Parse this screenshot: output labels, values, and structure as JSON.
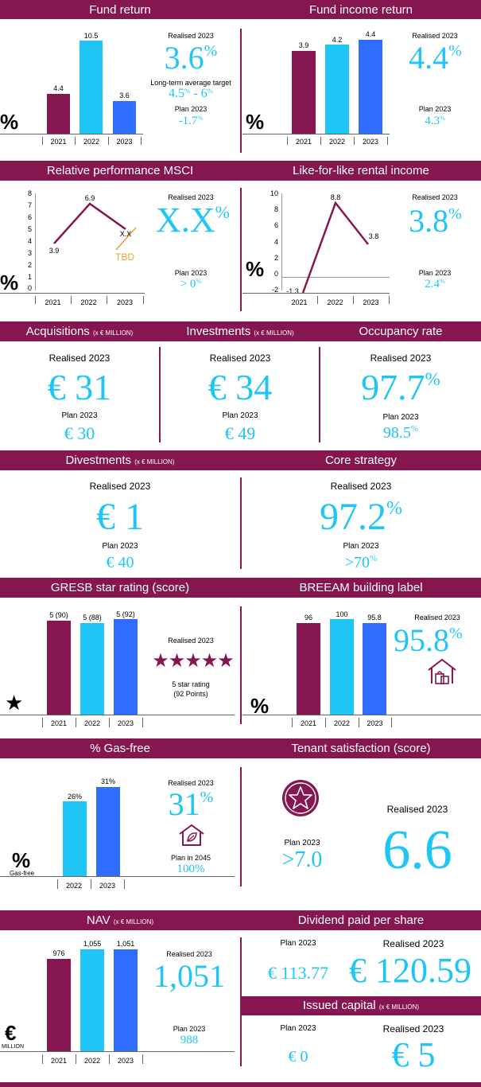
{
  "colors": {
    "band": "#86164f",
    "y2021": "#86164f",
    "y2022": "#1fc6f5",
    "y2023": "#2f6dff",
    "accent": "#1fc6f5",
    "tbd": "#f0a030"
  },
  "common": {
    "realised": "Realised 2023",
    "plan": "Plan 2023",
    "pct": "%",
    "y2021": "2021",
    "y2022": "2022",
    "y2023": "2023"
  },
  "fund_return": {
    "title": "Fund return",
    "bars": [
      "4.4",
      "10.5",
      "3.6"
    ],
    "realised_value": "3.6",
    "target_label": "Long-term average target",
    "target_value": "4.5",
    "target_value2": "6",
    "target_sep": " - ",
    "plan_value": "-1.7"
  },
  "fund_income_return": {
    "title": "Fund income return",
    "bars": [
      "3.9",
      "4.2",
      "4.4"
    ],
    "realised_value": "4.4",
    "plan_value": "4.3"
  },
  "relative_performance": {
    "title": "Relative performance MSCI",
    "yticks": [
      "8",
      "7",
      "6",
      "5",
      "4",
      "3",
      "2",
      "1",
      "0"
    ],
    "points": [
      "3.9",
      "6.9",
      "X.X"
    ],
    "tbd": "TBD",
    "realised_value": "X.X",
    "plan_value": "> 0"
  },
  "lfl_rental": {
    "title": "Like-for-like rental income",
    "yticks": [
      "10",
      "8",
      "6",
      "4",
      "2",
      "0",
      "-2"
    ],
    "points": [
      "-1.3",
      "8.8",
      "3.8"
    ],
    "realised_value": "3.8",
    "plan_value": "2.4"
  },
  "acquisitions": {
    "title": "Acquisitions",
    "unit": "(x € MILLION)",
    "realised_value": "€ 31",
    "plan_value": "€ 30"
  },
  "investments": {
    "title": "Investments",
    "unit": "(x € MILLION)",
    "realised_value": "€ 34",
    "plan_value": "€ 49"
  },
  "occupancy": {
    "title": "Occupancy rate",
    "realised_value": "97.7",
    "plan_value": "98.5"
  },
  "divestments": {
    "title": "Divestments",
    "unit": "(x € MILLION)",
    "realised_value": "€ 1",
    "plan_value": "€ 40"
  },
  "core_strategy": {
    "title": "Core strategy",
    "realised_value": "97.2",
    "plan_value": ">70"
  },
  "gresb": {
    "title": "GRESB star rating (score)",
    "bars": [
      "5 (90)",
      "5 (88)",
      "5 (92)"
    ],
    "rating_text": "5 star rating",
    "points_text": "(92 Points)"
  },
  "breeam": {
    "title": "BREEAM building label",
    "bars": [
      "96",
      "100",
      "95.8"
    ],
    "realised_value": "95.8"
  },
  "gas_free": {
    "title": "% Gas-free",
    "bars": [
      "26%",
      "31%"
    ],
    "realised_value": "31",
    "plan_label": "Plan in 2045",
    "plan_value": "100%",
    "unit_label": "Gas-free"
  },
  "tenant_satisfaction": {
    "title": "Tenant satisfaction (score)",
    "plan_value": ">7.0",
    "realised_value": "6.6"
  },
  "nav": {
    "title": "NAV",
    "unit": "(x € MILLION)",
    "bars": [
      "976",
      "1,055",
      "1,051"
    ],
    "realised_value": "1,051",
    "plan_value": "988",
    "currency": "€",
    "currency_unit": "MILLION"
  },
  "dividend": {
    "title": "Dividend paid per share",
    "plan_value": "€ 113.77",
    "realised_value": "€ 120.59"
  },
  "issued_capital": {
    "title": "Issued capital",
    "unit": "(x € MILLION)",
    "plan_value": "€ 0",
    "realised_value": "€ 5"
  }
}
